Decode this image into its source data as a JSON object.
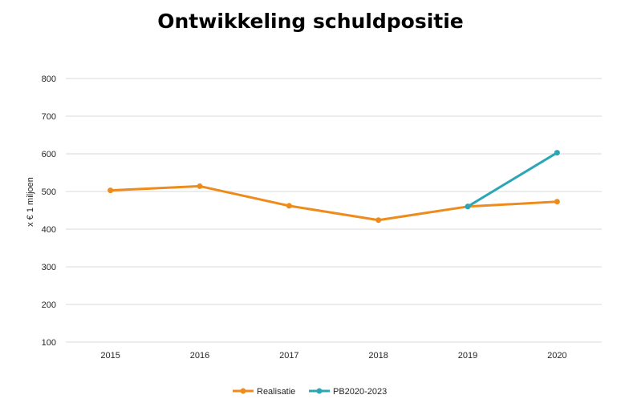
{
  "chart_data": {
    "type": "line",
    "title": "Ontwikkeling schuldpositie",
    "ylabel": "x € 1 miljoen",
    "xlabel": "",
    "categories": [
      "2015",
      "2016",
      "2017",
      "2018",
      "2019",
      "2020"
    ],
    "ylim": [
      100,
      800
    ],
    "yticks": [
      100,
      200,
      300,
      400,
      500,
      600,
      700,
      800
    ],
    "grid": true,
    "legend_position": "bottom",
    "series": [
      {
        "name": "Realisatie",
        "color": "#ED8C1C",
        "values": [
          503,
          514,
          462,
          424,
          460,
          473
        ]
      },
      {
        "name": "PB2020-2023",
        "color": "#2BA6B5",
        "values": [
          null,
          null,
          null,
          null,
          460,
          603
        ]
      }
    ]
  }
}
